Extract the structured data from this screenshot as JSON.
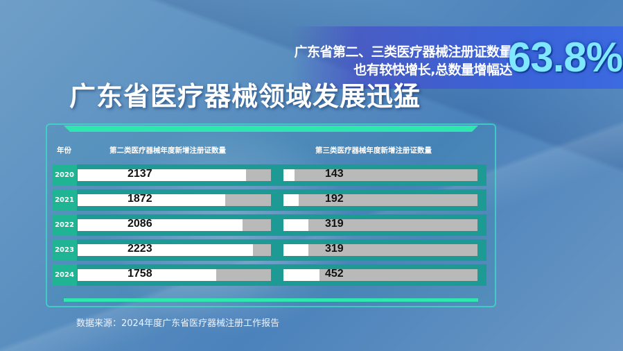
{
  "banner": {
    "line1": "广东省第二、三类医疗器械注册证数量",
    "line2": "也有较快增长,总数量增幅达",
    "growth": "63.8%"
  },
  "title": "广东省医疗器械领域发展迅猛",
  "chart_data": {
    "type": "bar",
    "orientation": "horizontal",
    "headers": {
      "year": "年份",
      "class2": "第二类医疗器械年度新增注册证数量",
      "class3": "第三类医疗器械年度新增注册证数量"
    },
    "categories": [
      "2020",
      "2021",
      "2022",
      "2023",
      "2024"
    ],
    "series": [
      {
        "name": "第二类医疗器械年度新增注册证数量",
        "values": [
          2137,
          1872,
          2086,
          2223,
          1758
        ]
      },
      {
        "name": "第三类医疗器械年度新增注册证数量",
        "values": [
          143,
          192,
          319,
          319,
          452
        ]
      }
    ],
    "xlim": [
      0,
      2450
    ],
    "colors": {
      "fill": "#ffffff",
      "track": "#b9b9b9",
      "row": "#1c9a93",
      "year_cell": "#1fb494",
      "accent": "#2fe6b0"
    }
  },
  "source": "数据来源：2024年度广东省医疗器械注册工作报告"
}
